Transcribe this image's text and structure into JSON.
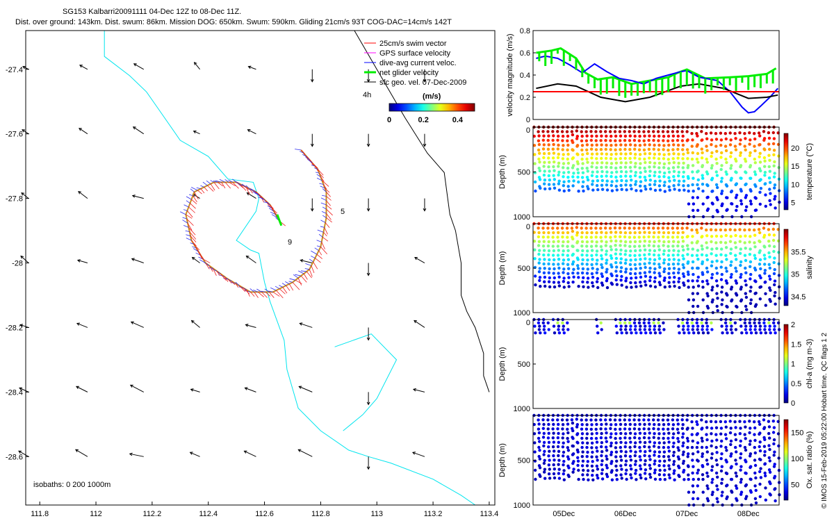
{
  "title_line1": "SG153 Kalbarri20091111 04-Dec 12Z to 08-Dec 11Z.",
  "title_line2": "Dist. over ground: 143km. Dist. swum: 86km. Mission DOG: 650km. Swum: 590km. Gliding 21cm/s 93T COG-DAC=14cm/s 142T",
  "credit": "© IMOS 15-Feb-2019 05:22:00 Hobart time. QC flags 1 2",
  "chart_data": [
    {
      "type": "map",
      "id": "track-map",
      "x_ticks": [
        "111.8",
        "112",
        "112.2",
        "112.4",
        "112.6",
        "112.8",
        "113",
        "113.2",
        "113.4"
      ],
      "y_ticks": [
        "-27.4",
        "-27.6",
        "-27.8",
        "-28",
        "-28.2",
        "-28.4",
        "-28.6"
      ],
      "xlim": [
        111.75,
        113.42
      ],
      "ylim": [
        -28.75,
        -27.28
      ],
      "legend": [
        {
          "label": "25cm/s swim vector",
          "color": "#ff0000"
        },
        {
          "label": "GPS surface velocity",
          "color": "#ff00ff"
        },
        {
          "label": "dive-avg current veloc.",
          "color": "#0000ff"
        },
        {
          "label": "net glider velocity",
          "color": "#00ee00"
        },
        {
          "label": "sfc geo. vel. 07-Dec-2009",
          "color": "#000000"
        }
      ],
      "legend_placement": "top-right",
      "colorbar": {
        "label": "(m/s)",
        "ticks": [
          "0",
          "0.2",
          "0.4"
        ],
        "range": [
          0,
          0.5
        ]
      },
      "annotations": [
        "4h",
        "5",
        "9"
      ],
      "isobath_label": "isobaths: 0   200  1000m",
      "isobath_colors": {
        "0m": "#00e5ee",
        "1000m": "#000000"
      }
    },
    {
      "type": "line",
      "id": "velocity-panel",
      "ylabel": "velocity magnitude (m/s)",
      "y_ticks": [
        "0",
        "0.2",
        "0.4",
        "0.6",
        "0.8"
      ],
      "ylim": [
        0,
        0.8
      ],
      "xlim": [
        4.5,
        8.5
      ],
      "series": [
        {
          "color": "#00ee00",
          "x": [
            4.55,
            4.8,
            4.95,
            5.2,
            5.35,
            5.55,
            5.8,
            6.1,
            6.4,
            6.7,
            6.85,
            7.0,
            7.3,
            7.7,
            8.0,
            8.3,
            8.45
          ],
          "y": [
            0.6,
            0.62,
            0.64,
            0.55,
            0.42,
            0.36,
            0.38,
            0.32,
            0.35,
            0.38,
            0.42,
            0.45,
            0.37,
            0.38,
            0.39,
            0.41,
            0.46
          ]
        },
        {
          "color": "#0000ff",
          "x": [
            4.55,
            4.7,
            4.9,
            5.1,
            5.3,
            5.5,
            5.7,
            5.9,
            6.1,
            6.3,
            6.5,
            6.7,
            6.9,
            7.0,
            7.2,
            7.5,
            7.7,
            7.9,
            8.0,
            8.1,
            8.2,
            8.35,
            8.48
          ],
          "y": [
            0.55,
            0.57,
            0.55,
            0.49,
            0.42,
            0.5,
            0.43,
            0.37,
            0.35,
            0.32,
            0.37,
            0.4,
            0.43,
            0.44,
            0.38,
            0.35,
            0.25,
            0.11,
            0.06,
            0.07,
            0.12,
            0.2,
            0.28
          ]
        },
        {
          "color": "#000000",
          "x": [
            4.55,
            4.9,
            5.2,
            5.6,
            6.0,
            6.4,
            6.9,
            7.2,
            7.6,
            8.0,
            8.3,
            8.48
          ],
          "y": [
            0.28,
            0.32,
            0.3,
            0.2,
            0.16,
            0.2,
            0.3,
            0.32,
            0.28,
            0.19,
            0.2,
            0.22
          ]
        },
        {
          "color": "#ff0000",
          "x": [
            4.5,
            8.5
          ],
          "y": [
            0.25,
            0.25
          ]
        }
      ]
    },
    {
      "type": "scatter",
      "id": "temperature-panel",
      "variable": "temperature",
      "colorbar_label": "temperature (°C)",
      "cb_ticks": [
        "5",
        "10",
        "15",
        "20"
      ],
      "cb_range": [
        3,
        24
      ],
      "ylabel": "Depth (m)",
      "y_ticks": [
        "0",
        "500",
        "1000"
      ],
      "ylim": [
        0,
        1000
      ]
    },
    {
      "type": "scatter",
      "id": "salinity-panel",
      "variable": "salinity",
      "colorbar_label": "salinity",
      "cb_ticks": [
        "34.5",
        "35",
        "35.5"
      ],
      "cb_range": [
        34.3,
        36.0
      ],
      "ylabel": "Depth (m)",
      "y_ticks": [
        "0",
        "500",
        "1000"
      ],
      "ylim": [
        0,
        1000
      ]
    },
    {
      "type": "scatter",
      "id": "chla-panel",
      "variable": "chl-a",
      "colorbar_label": "chl-a (mg m-3)",
      "cb_ticks": [
        "0",
        "0.5",
        "1",
        "1.5",
        "2"
      ],
      "cb_range": [
        0,
        2
      ],
      "ylabel": "Depth (m)",
      "y_ticks": [
        "0",
        "500",
        "1000"
      ],
      "ylim": [
        0,
        1000
      ]
    },
    {
      "type": "scatter",
      "id": "oxygen-panel",
      "variable": "oxygen saturation",
      "colorbar_label": "Ox. sat. ratio (%)",
      "cb_ticks": [
        "50",
        "100",
        "150"
      ],
      "cb_range": [
        20,
        175
      ],
      "ylabel": "Depth (m)",
      "y_ticks": [
        "500",
        "1000"
      ],
      "ylim": [
        0,
        1000
      ]
    }
  ],
  "time_axis": {
    "ticks": [
      "05Dec",
      "06Dec",
      "07Dec",
      "08Dec"
    ],
    "range_days": [
      4.5,
      8.5
    ]
  }
}
